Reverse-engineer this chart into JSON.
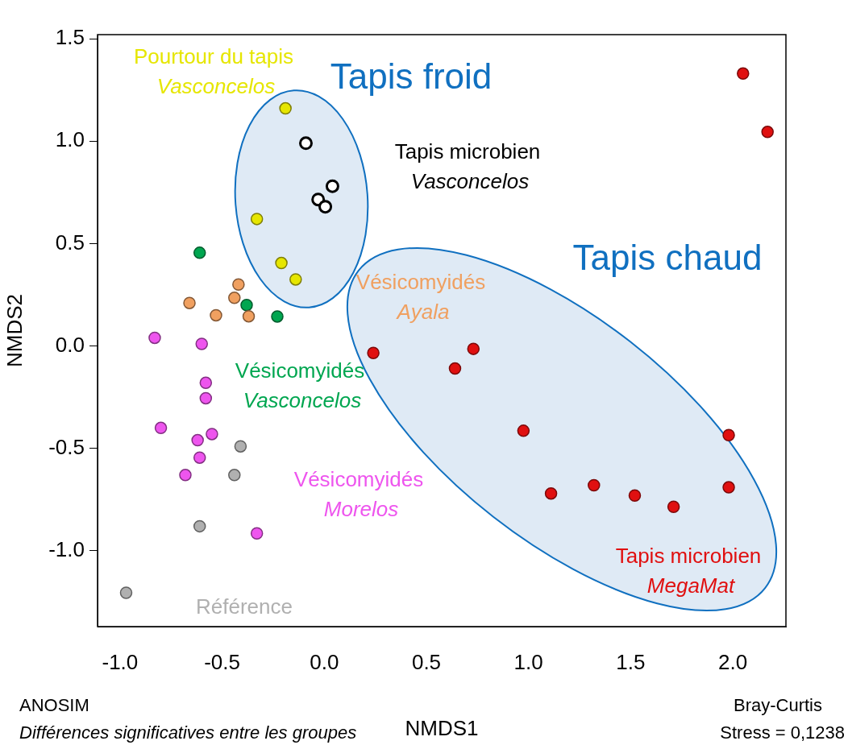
{
  "chart_data": {
    "type": "scatter",
    "xlabel": "NMDS1",
    "ylabel": "NMDS2",
    "xlim": [
      -1.11,
      2.26
    ],
    "ylim": [
      -1.37,
      1.52
    ],
    "xticks": [
      {
        "value": -1,
        "label": "-1.0"
      },
      {
        "value": -0.5,
        "label": "-0.5"
      },
      {
        "value": 0,
        "label": "0.0"
      },
      {
        "value": 0.5,
        "label": "0.5"
      },
      {
        "value": 1,
        "label": "1.0"
      },
      {
        "value": 1.5,
        "label": "1.5"
      },
      {
        "value": 2,
        "label": "2.0"
      }
    ],
    "yticks": [
      {
        "value": -1,
        "label": "-1.0"
      },
      {
        "value": -0.5,
        "label": "-0.5"
      },
      {
        "value": 0,
        "label": "0.0"
      },
      {
        "value": 0.5,
        "label": "0.5"
      },
      {
        "value": 1,
        "label": "1.0"
      },
      {
        "value": 1.5,
        "label": "1.5"
      }
    ],
    "grid": false,
    "legend": false,
    "marker": "circle",
    "annotations": [
      "Tapis froid",
      "Tapis chaud",
      "ANOSIM",
      "Différences significatives entre les groupes",
      "Bray-Curtis",
      "Stress = 0,1238"
    ],
    "series": [
      {
        "name": "Pourtour du tapis Vasconcelos",
        "color": "#e6e600",
        "x": [
          -0.19,
          -0.33,
          -0.21,
          -0.14
        ],
        "values": [
          1.16,
          0.62,
          0.405,
          0.325
        ]
      },
      {
        "name": "Tapis microbien Vasconcelos",
        "color": "#000000",
        "x": [
          -0.09,
          0.04,
          -0.03,
          0.005
        ],
        "values": [
          0.99,
          0.78,
          0.715,
          0.68
        ]
      },
      {
        "name": "Vésicomyidés Ayala",
        "color": "#f0a060",
        "x": [
          -0.42,
          -0.44,
          -0.66,
          -0.53,
          -0.37
        ],
        "values": [
          0.3,
          0.235,
          0.21,
          0.15,
          0.145
        ]
      },
      {
        "name": "Vésicomyidés Vasconcelos",
        "color": "#00a650",
        "x": [
          -0.61,
          -0.38,
          -0.23
        ],
        "values": [
          0.455,
          0.2,
          0.144
        ]
      },
      {
        "name": "Vésicomyidés Morelos",
        "color": "#ee55ee",
        "x": [
          -0.83,
          -0.6,
          -0.58,
          -0.58,
          -0.8,
          -0.55,
          -0.62,
          -0.61,
          -0.68,
          -0.33
        ],
        "values": [
          0.04,
          0.01,
          -0.18,
          -0.255,
          -0.4,
          -0.43,
          -0.46,
          -0.545,
          -0.63,
          -0.915
        ]
      },
      {
        "name": "Référence",
        "color": "#b0b0b0",
        "x": [
          -0.41,
          -0.44,
          -0.61,
          -0.97
        ],
        "values": [
          -0.49,
          -0.63,
          -0.88,
          -1.205
        ]
      },
      {
        "name": "Tapis microbien MegaMat",
        "color": "#e01010",
        "x": [
          2.05,
          2.17,
          0.24,
          0.73,
          0.64,
          0.975,
          1.98,
          1.11,
          1.32,
          1.52,
          1.71,
          1.98
        ],
        "values": [
          1.33,
          1.045,
          -0.034,
          -0.014,
          -0.11,
          -0.414,
          -0.435,
          -0.72,
          -0.68,
          -0.73,
          -0.785,
          -0.69
        ]
      }
    ]
  }
}
